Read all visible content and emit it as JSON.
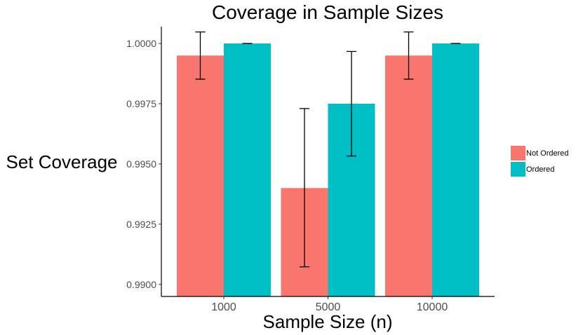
{
  "chart_data": {
    "type": "bar",
    "title": "Coverage in Sample Sizes",
    "xlabel": "Sample Size (n)",
    "ylabel": "Set Coverage",
    "categories": [
      "1000",
      "5000",
      "10000"
    ],
    "ylim": [
      0.9895,
      1.0007
    ],
    "yticks": [
      "0.9900",
      "0.9925",
      "0.9950",
      "0.9975",
      "1.0000"
    ],
    "grid": false,
    "legend_position": "right",
    "series": [
      {
        "name": "Not Ordered",
        "color": "#F8766D",
        "values": [
          0.9995,
          0.994,
          0.9995
        ],
        "error_low": [
          0.99852,
          0.99073,
          0.99852
        ],
        "error_high": [
          1.00048,
          0.9973,
          1.00048
        ]
      },
      {
        "name": "Ordered",
        "color": "#00BFC4",
        "values": [
          1.0,
          0.9975,
          1.0
        ],
        "error_low": [
          1.0,
          0.99533,
          1.0
        ],
        "error_high": [
          1.0,
          0.99967,
          1.0
        ]
      }
    ]
  }
}
